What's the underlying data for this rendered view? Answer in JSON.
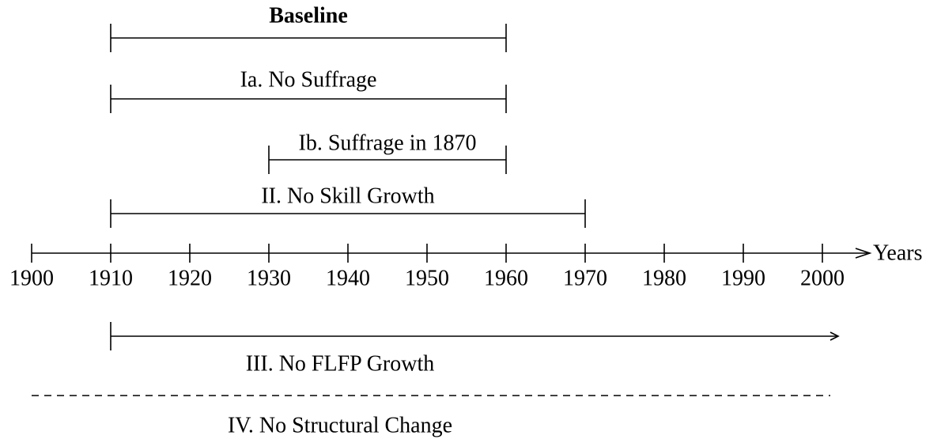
{
  "axis": {
    "label": "Years",
    "ticks": [
      1900,
      1910,
      1920,
      1930,
      1940,
      1950,
      1960,
      1970,
      1980,
      1990,
      2000
    ],
    "lim": [
      1900,
      2006
    ]
  },
  "intervals": [
    {
      "label": "Baseline",
      "start": 1910,
      "end": 1960,
      "bold": true
    },
    {
      "label": "Ia. No Suffrage",
      "start": 1910,
      "end": 1960
    },
    {
      "label": "Ib. Suffrage in 1870",
      "start": 1930,
      "end": 1960
    },
    {
      "label": "II. No Skill Growth",
      "start": 1910,
      "end": 1970
    },
    {
      "label": "III. No FLFP Growth",
      "start": 1910,
      "end": 2002,
      "arrow": true
    },
    {
      "label": "IV. No Structural Change",
      "start": 1900,
      "end": 2001,
      "style": "dashed"
    }
  ]
}
